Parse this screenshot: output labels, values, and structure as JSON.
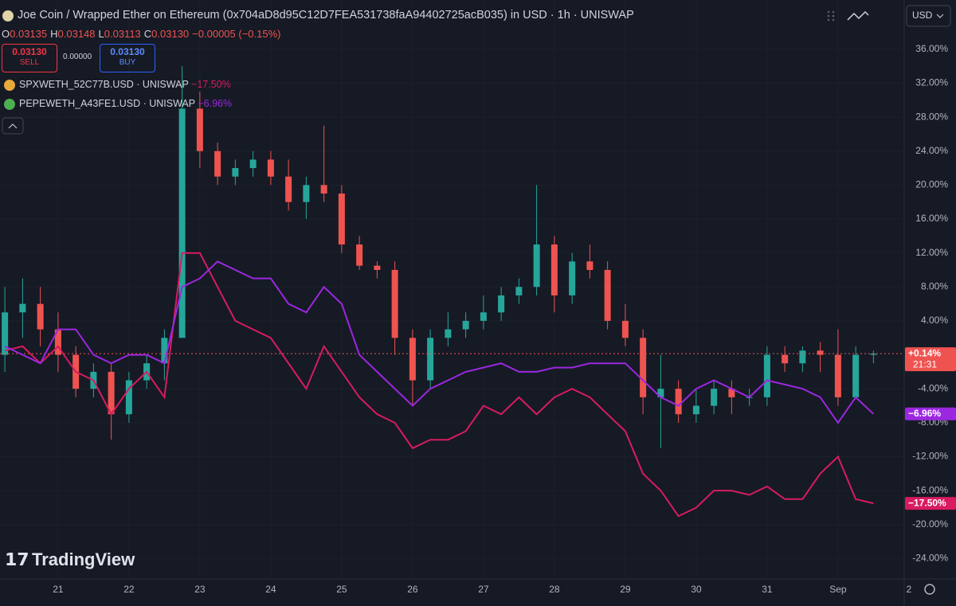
{
  "chart_data": {
    "type": "candlestick",
    "title": "Joe Coin / Wrapped Ether on Ethereum (0x704aD8d95C12D7FEA531738faA94402725acB035) in USD · 1h · UNISWAP",
    "ohlc_legend": [
      {
        "label": "O",
        "value": "0.03135"
      },
      {
        "label": "H",
        "value": "0.03148"
      },
      {
        "label": "L",
        "value": "0.03113"
      },
      {
        "label": "C",
        "value": "0.03130"
      }
    ],
    "change": "−0.00005 (−0.15%)",
    "trade": {
      "sell_price": "0.03130",
      "sell": "SELL",
      "spread": "0.00000",
      "buy_price": "0.03130",
      "buy": "BUY"
    },
    "categories": [
      null,
      null,
      null,
      "21",
      null,
      null,
      null,
      "22",
      null,
      null,
      null,
      "23",
      null,
      null,
      null,
      "24",
      null,
      null,
      null,
      "25",
      null,
      null,
      null,
      "26",
      null,
      null,
      null,
      "27",
      null,
      null,
      null,
      "28",
      null,
      null,
      null,
      "29",
      null,
      null,
      null,
      "30",
      null,
      null,
      null,
      "31",
      null,
      null,
      null,
      "Sep",
      null,
      null,
      null,
      "2"
    ],
    "open": [
      0,
      5,
      6,
      3,
      0,
      -4,
      -2,
      -7,
      -3,
      -1,
      2,
      29,
      24,
      21,
      22,
      23,
      21,
      18,
      20,
      19,
      13,
      10.5,
      10,
      2,
      -3,
      2,
      3,
      4,
      5,
      7,
      8,
      13,
      7,
      11,
      10,
      4,
      2,
      -5,
      -4,
      -7,
      -6,
      -4,
      -5,
      -5,
      0,
      -1,
      0.5,
      0,
      -5,
      0,
      null,
      null
    ],
    "high": [
      8,
      9,
      8,
      5,
      1,
      -1,
      -1,
      -2,
      0,
      3,
      34,
      31,
      25,
      23,
      24,
      24,
      23,
      21,
      27,
      20,
      14,
      11,
      11,
      3,
      3,
      5,
      5,
      7,
      8,
      9,
      20,
      14,
      12,
      13,
      11,
      6,
      3,
      0,
      -3,
      -4,
      -3,
      -3,
      -4,
      1,
      1,
      1,
      1.5,
      3,
      1,
      0.5,
      null,
      null
    ],
    "low": [
      -2,
      2,
      1,
      -2,
      -5,
      -5,
      -10,
      -8,
      -4,
      -3,
      2,
      22,
      20,
      20,
      21,
      20,
      17,
      16,
      18,
      12,
      10,
      9,
      0,
      -6,
      -4,
      1,
      2,
      3,
      4,
      6,
      7,
      5,
      6,
      9,
      3,
      1,
      -7,
      -11,
      -8,
      -8,
      -7,
      -7,
      -6,
      -6,
      -2,
      -2,
      -2,
      -6,
      -5,
      -1,
      null,
      null
    ],
    "close": [
      5,
      6,
      3,
      0,
      -4,
      -2,
      -7,
      -3,
      -1,
      2,
      29,
      24,
      21,
      22,
      23,
      21,
      18,
      20,
      19,
      13,
      10.5,
      10,
      2,
      -3,
      2,
      3,
      4,
      5,
      7,
      8,
      13,
      7,
      11,
      10,
      4,
      2,
      -5,
      -4,
      -7,
      -6,
      -4,
      -5,
      -5,
      0,
      -1,
      0.5,
      0,
      -5,
      0,
      0.14,
      null,
      null
    ],
    "up_color": "#26a69a",
    "down_color": "#ef5350",
    "last_label": "+0.14%",
    "countdown": "21:31",
    "compare": [
      {
        "name": "SPXWETH_52C77B.USD · UNISWAP",
        "color": "#d81b60",
        "legend_change": "−17.50%",
        "last_label": "−17.50%",
        "values": [
          0.5,
          1,
          -1,
          1,
          -2,
          -3,
          -7,
          -4,
          -2,
          -5,
          12,
          12,
          8,
          4,
          3,
          2,
          -1,
          -4,
          1,
          -2,
          -5,
          -7,
          -8,
          -11,
          -10,
          -10,
          -9,
          -6,
          -7,
          -5,
          -7,
          -5,
          -4,
          -5,
          -7,
          -9,
          -14,
          -16,
          -19,
          -18,
          -16,
          -16,
          -16.5,
          -15.5,
          -17,
          -17,
          -14,
          -12,
          -17,
          -17.5,
          null,
          null
        ]
      },
      {
        "name": "PEPEWETH_A43FE1.USD · UNISWAP",
        "color": "#9c27e0",
        "legend_change": "−6.96%",
        "last_label": "−6.96%",
        "values": [
          1,
          0,
          -1,
          3,
          3,
          0,
          -1,
          0,
          0,
          -1,
          8,
          9,
          11,
          10,
          9,
          9,
          6,
          5,
          8,
          6,
          0,
          -2,
          -4,
          -6,
          -4,
          -3,
          -2,
          -1.5,
          -1,
          -2,
          -2,
          -1.5,
          -1.5,
          -1,
          -1,
          -1,
          -3,
          -5,
          -6,
          -4,
          -3,
          -4,
          -5,
          -3,
          -3.5,
          -4,
          -5,
          -8,
          -5,
          -6.96,
          null,
          null
        ]
      }
    ],
    "ylim": [
      -26.4,
      41.8
    ],
    "yticks": [
      {
        "value": 36,
        "label": "36.00%"
      },
      {
        "value": 32,
        "label": "32.00%"
      },
      {
        "value": 28,
        "label": "28.00%"
      },
      {
        "value": 24,
        "label": "24.00%"
      },
      {
        "value": 20,
        "label": "20.00%"
      },
      {
        "value": 16,
        "label": "16.00%"
      },
      {
        "value": 12,
        "label": "12.00%"
      },
      {
        "value": 8,
        "label": "8.00%"
      },
      {
        "value": 4,
        "label": "4.00%"
      },
      {
        "value": -4,
        "label": "-4.00%"
      },
      {
        "value": -8,
        "label": "-8.00%"
      },
      {
        "value": -12,
        "label": "-12.00%"
      },
      {
        "value": -16,
        "label": "-16.00%"
      },
      {
        "value": -20,
        "label": "-20.00%"
      },
      {
        "value": -24,
        "label": "-24.00%"
      }
    ],
    "currency": "USD",
    "brand": "TradingView"
  }
}
